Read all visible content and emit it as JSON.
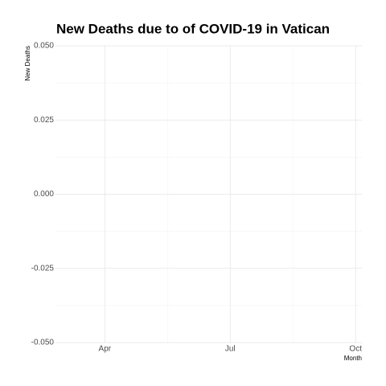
{
  "chart_data": {
    "type": "line",
    "title": "New Deaths due to of COVID-19 in Vatican",
    "ylabel": "New Deaths",
    "xlabel": "Month",
    "xlim": [
      2.82,
      10.15
    ],
    "xticks": [
      {
        "value": 4,
        "label": "Apr"
      },
      {
        "value": 7,
        "label": "Jul"
      },
      {
        "value": 10,
        "label": "Oct"
      }
    ],
    "ylim": [
      -0.05,
      0.05
    ],
    "yticks": [
      {
        "value": -0.05,
        "label": "-0.050"
      },
      {
        "value": -0.025,
        "label": "-0.025"
      },
      {
        "value": 0,
        "label": "0.000"
      },
      {
        "value": 0.025,
        "label": "0.025"
      },
      {
        "value": 0.05,
        "label": "0.050"
      }
    ],
    "grid": true
  }
}
